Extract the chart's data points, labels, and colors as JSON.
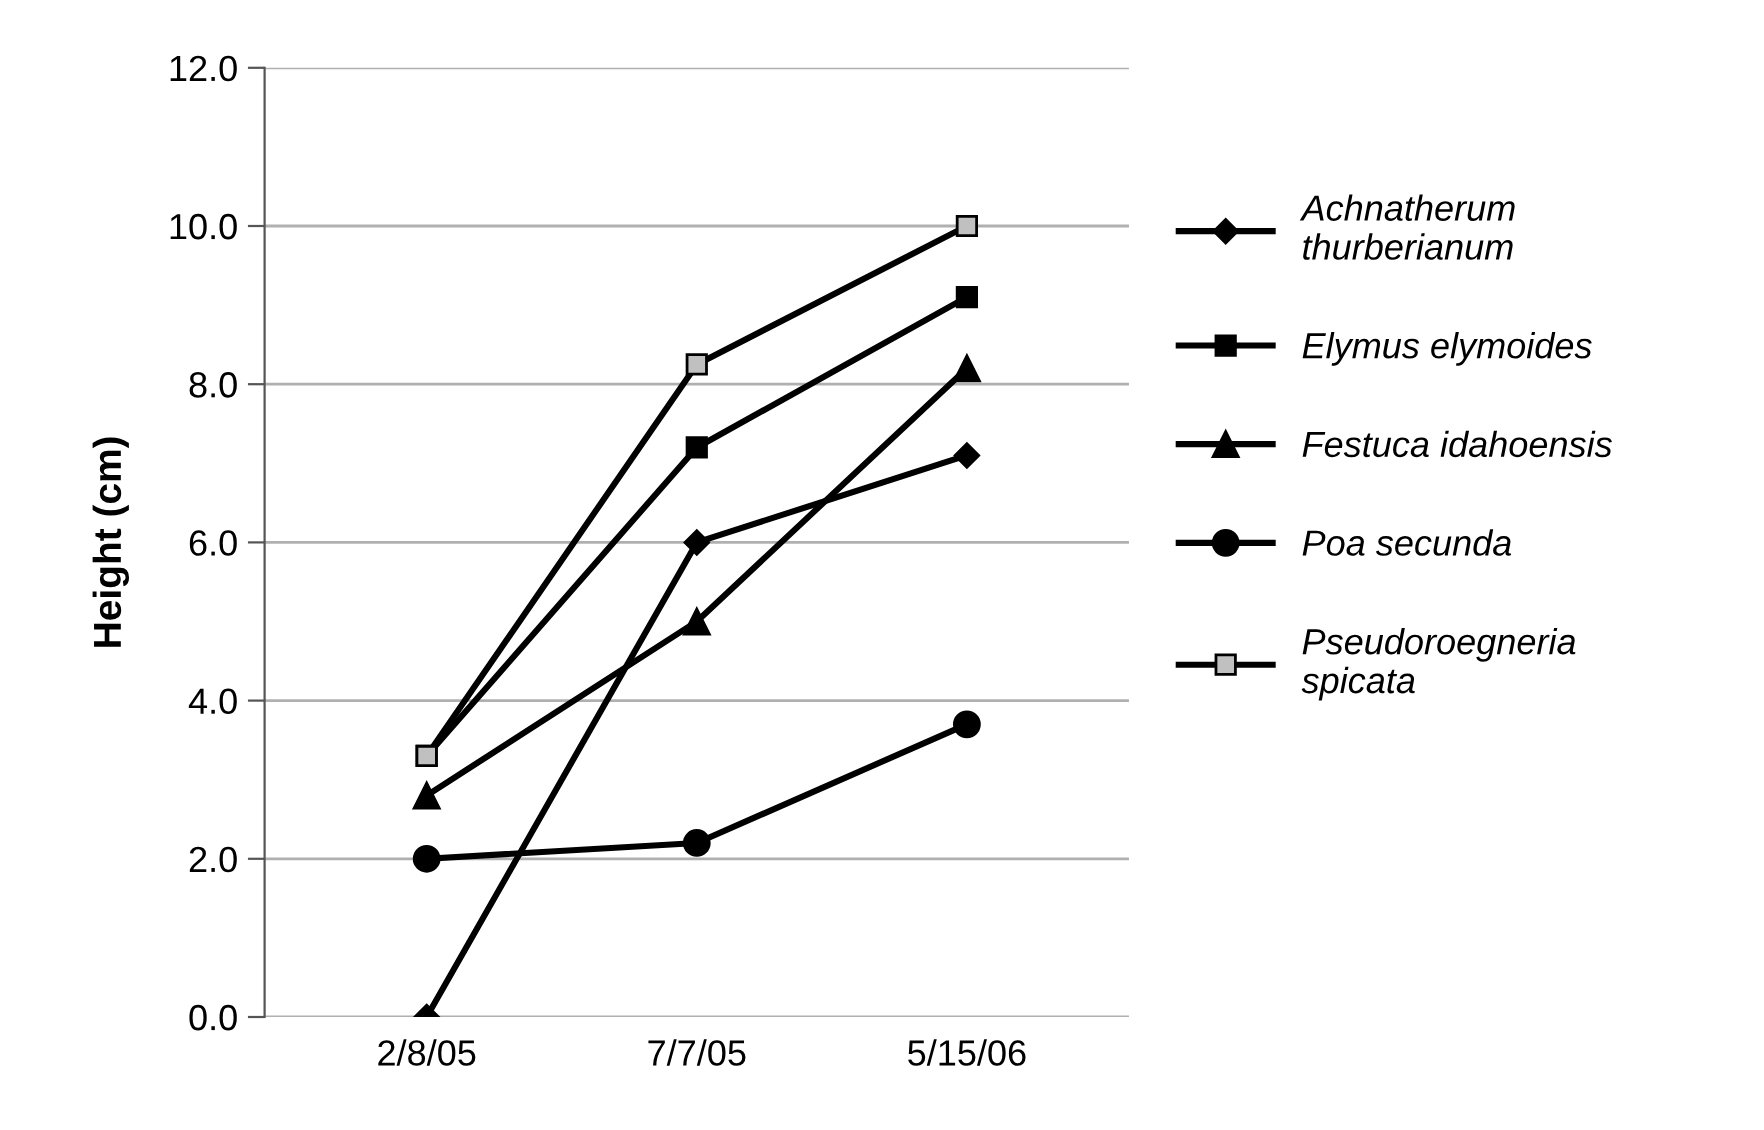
{
  "chart_data": {
    "type": "line",
    "ylabel": "Height (cm)",
    "categories": [
      "2/8/05",
      "7/7/05",
      "5/15/06"
    ],
    "series": [
      {
        "name": "Achnatherum\nthurberianum",
        "color": "#000000",
        "marker": "diamond",
        "values": [
          0.0,
          6.0,
          7.1
        ]
      },
      {
        "name": "Elymus elymoides",
        "color": "#000000",
        "marker": "square",
        "values": [
          3.3,
          7.2,
          9.1
        ]
      },
      {
        "name": "Festuca idahoensis",
        "color": "#000000",
        "marker": "triangle",
        "values": [
          2.8,
          5.0,
          8.2
        ]
      },
      {
        "name": "Poa secunda",
        "color": "#000000",
        "marker": "circle",
        "values": [
          2.0,
          2.2,
          3.7
        ]
      },
      {
        "name": "Pseudoroegneria\nspicata",
        "color": "#000000",
        "marker": "square",
        "colors": [
          "#c0c0c0",
          "#c0c0c0",
          "#c0c0c0"
        ],
        "values": [
          3.3,
          8.25,
          10.0
        ]
      }
    ],
    "ylim": [
      0,
      12
    ],
    "yticks": [
      {
        "value": 0,
        "label": "0.0"
      },
      {
        "value": 2,
        "label": "2.0"
      },
      {
        "value": 4,
        "label": "4.0"
      },
      {
        "value": 6,
        "label": "6.0"
      },
      {
        "value": 8,
        "label": "8.0"
      },
      {
        "value": 10,
        "label": "10.0"
      },
      {
        "value": 12,
        "label": "12.0"
      }
    ],
    "grid": "y",
    "legend": "right",
    "line_style": "solid"
  }
}
